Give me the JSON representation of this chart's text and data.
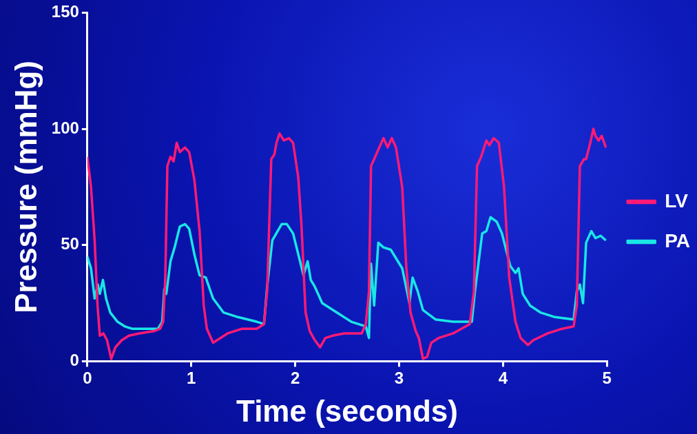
{
  "chart_data": {
    "type": "line",
    "xlabel": "Time (seconds)",
    "ylabel": "Pressure (mmHg)",
    "xlim": [
      0,
      5
    ],
    "xticks": [
      0,
      1,
      2,
      3,
      4,
      5
    ],
    "ylim": [
      0,
      150
    ],
    "yticks": [
      0,
      50,
      100,
      150
    ],
    "grid": false,
    "legend": "right",
    "marker": "none",
    "line_style": "solid",
    "series": [
      {
        "name": "LV",
        "color": "#ff1a75",
        "x": [
          0,
          0.035,
          0.07,
          0.098,
          0.12,
          0.154,
          0.19,
          0.23,
          0.27,
          0.33,
          0.4,
          0.5,
          0.645,
          0.7,
          0.73,
          0.75,
          0.77,
          0.8,
          0.83,
          0.86,
          0.89,
          0.94,
          0.98,
          1.03,
          1.08,
          1.12,
          1.15,
          1.21,
          1.28,
          1.35,
          1.49,
          1.63,
          1.7,
          1.73,
          1.77,
          1.8,
          1.82,
          1.85,
          1.89,
          1.94,
          1.98,
          2.03,
          2.06,
          2.1,
          2.14,
          2.19,
          2.24,
          2.29,
          2.36,
          2.47,
          2.64,
          2.68,
          2.71,
          2.73,
          2.76,
          2.79,
          2.85,
          2.89,
          2.93,
          2.97,
          3.03,
          3.07,
          3.11,
          3.16,
          3.19,
          3.23,
          3.27,
          3.31,
          3.38,
          3.52,
          3.68,
          3.72,
          3.75,
          3.79,
          3.84,
          3.87,
          3.91,
          3.96,
          4.01,
          4.06,
          4.12,
          4.17,
          4.24,
          4.29,
          4.43,
          4.57,
          4.68,
          4.71,
          4.74,
          4.78,
          4.8,
          4.84,
          4.87,
          4.89,
          4.92,
          4.95,
          4.99
        ],
        "values": [
          88,
          75,
          52,
          24,
          11,
          12,
          9,
          1,
          6,
          9,
          11,
          12,
          13,
          14,
          17,
          36,
          84,
          88,
          86,
          94,
          90,
          92,
          90,
          78,
          56,
          24,
          14,
          8,
          10,
          12,
          14,
          14,
          16,
          30,
          87,
          89,
          94,
          98,
          95,
          96,
          94,
          79,
          59,
          21,
          13,
          9,
          6,
          10,
          11,
          12,
          12,
          16,
          30,
          84,
          87,
          90,
          96,
          92,
          96,
          92,
          75,
          40,
          21,
          13,
          10,
          1,
          2,
          8,
          10,
          12,
          16,
          30,
          84,
          88,
          95,
          93,
          96,
          94,
          75,
          36,
          17,
          10,
          7,
          9,
          12,
          14,
          15,
          24,
          84,
          87,
          87,
          94,
          100,
          97,
          95,
          97,
          92
        ]
      },
      {
        "name": "PA",
        "color": "#1ae6e6",
        "x": [
          0,
          0.035,
          0.07,
          0.1,
          0.12,
          0.15,
          0.18,
          0.22,
          0.29,
          0.36,
          0.43,
          0.58,
          0.68,
          0.72,
          0.74,
          0.76,
          0.8,
          0.84,
          0.89,
          0.94,
          0.98,
          1.03,
          1.08,
          1.14,
          1.21,
          1.31,
          1.45,
          1.63,
          1.7,
          1.73,
          1.78,
          1.87,
          1.92,
          1.98,
          2.03,
          2.08,
          2.12,
          2.15,
          2.19,
          2.26,
          2.4,
          2.54,
          2.68,
          2.71,
          2.73,
          2.76,
          2.8,
          2.85,
          2.92,
          3.03,
          3.1,
          3.13,
          3.18,
          3.23,
          3.35,
          3.52,
          3.7,
          3.73,
          3.8,
          3.84,
          3.88,
          3.94,
          3.99,
          4.07,
          4.12,
          4.15,
          4.19,
          4.26,
          4.36,
          4.5,
          4.68,
          4.71,
          4.74,
          4.77,
          4.8,
          4.85,
          4.89,
          4.94,
          4.99
        ],
        "values": [
          45,
          40,
          27,
          33,
          29,
          35,
          27,
          21,
          17,
          15,
          14,
          14,
          14,
          17,
          31,
          29,
          43,
          49,
          58,
          59,
          57,
          46,
          37,
          36,
          27,
          21,
          19,
          17,
          16,
          32,
          52,
          59,
          59,
          55,
          46,
          37,
          43,
          35,
          32,
          25,
          21,
          17,
          15,
          10,
          42,
          24,
          51,
          49,
          48,
          40,
          25,
          36,
          30,
          22,
          18,
          17,
          17,
          30,
          55,
          56,
          62,
          60,
          55,
          41,
          38,
          40,
          29,
          24,
          21,
          19,
          18,
          30,
          33,
          25,
          51,
          56,
          53,
          54,
          52
        ]
      }
    ]
  }
}
